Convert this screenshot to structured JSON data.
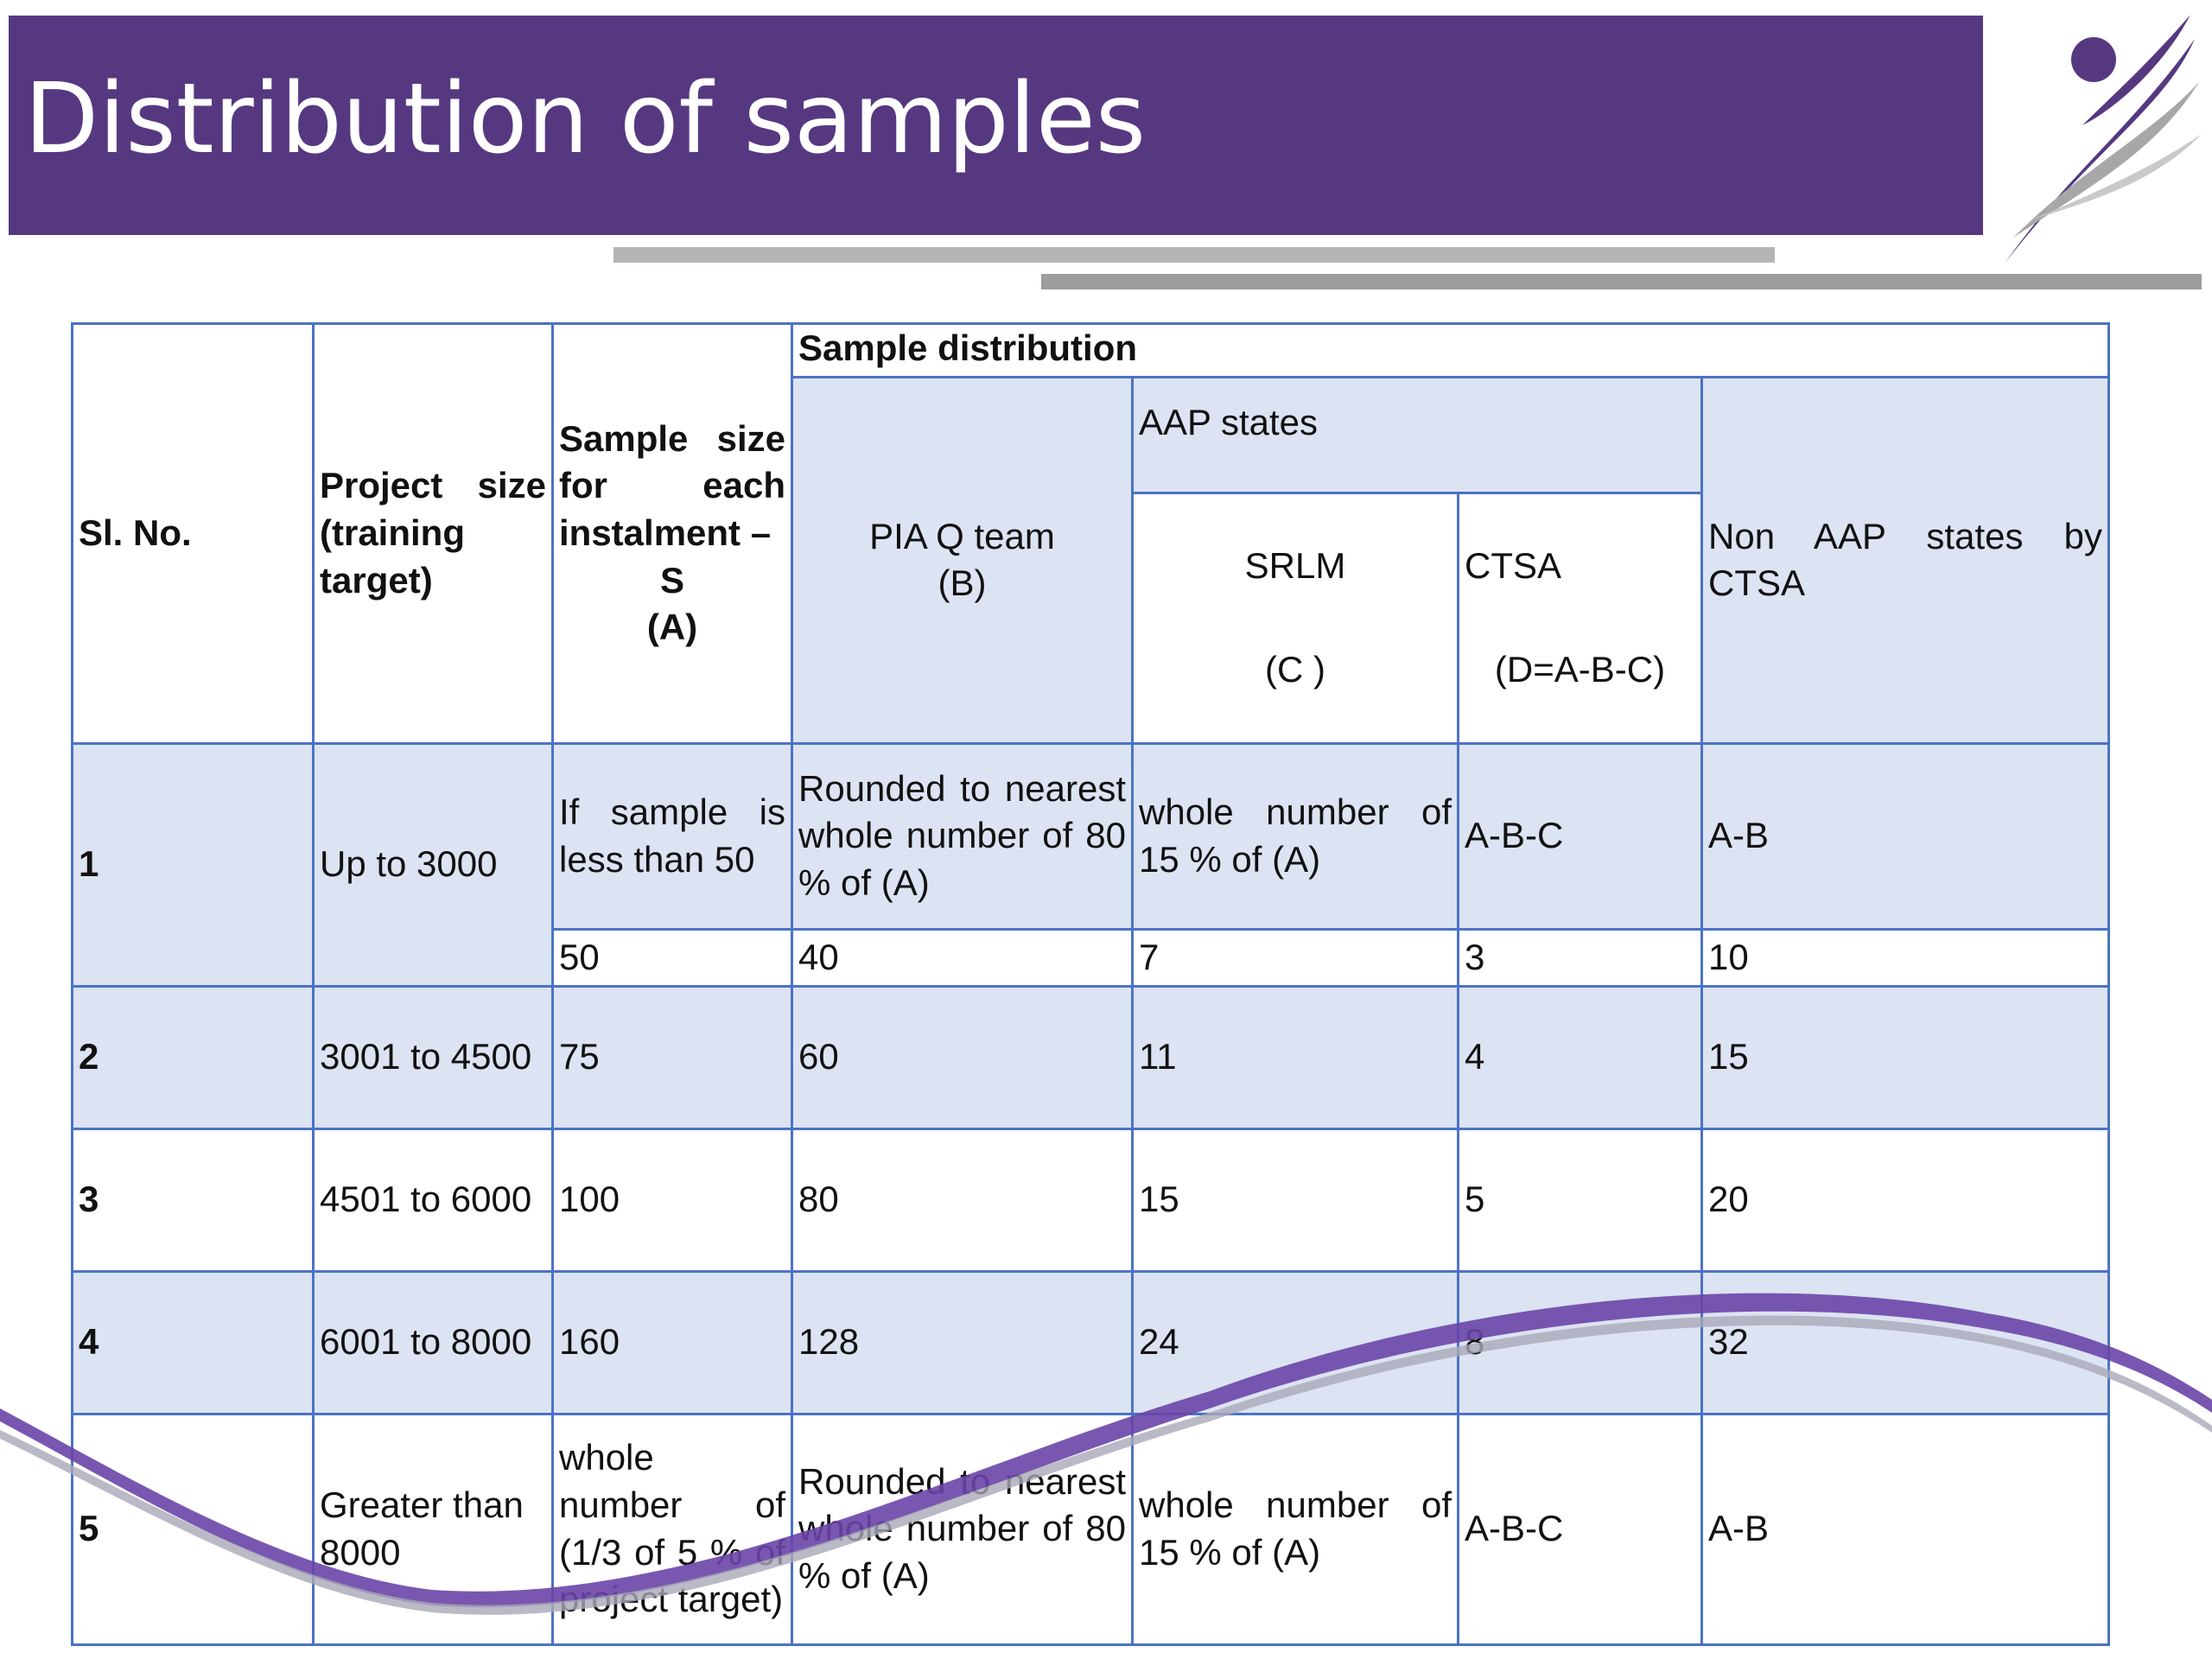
{
  "slide": {
    "title": "Distribution of samples"
  },
  "colors": {
    "banner": "#563881",
    "table_border": "#4b73c4",
    "row_shade": "#dce3f2",
    "accent_bar_light": "#b5b5b5",
    "accent_bar_dark": "#9d9d9d"
  },
  "icons": {
    "logo": "person-swoosh-logo",
    "decoration": "purple-wave-swoosh"
  },
  "table": {
    "headers": {
      "sl_no": "Sl. No.",
      "project_size_1": "Project size",
      "project_size_2": "(training",
      "project_size_3": "target)",
      "sample_size_1": "Sample size",
      "sample_size_2": "for each",
      "sample_size_3": "instalment –",
      "sample_size_4": "S",
      "sample_size_5": "(A)",
      "sample_distribution": "Sample distribution",
      "pia_1": "PIA Q team",
      "pia_2": "(B)",
      "aap_states": "AAP states",
      "srlm_1": "SRLM",
      "srlm_2": "(C )",
      "ctsa_1": "CTSA",
      "ctsa_2": "(D=A-B-C)",
      "non_aap": "Non AAP states by CTSA"
    },
    "rows": [
      {
        "sl": "1",
        "project": "Up to 3000",
        "sample": "If sample is less than 50",
        "pia": "Rounded to nearest whole number of 80 % of (A)",
        "srlm": "whole number of 15 % of (A)",
        "ctsa": "A-B-C",
        "non_aap": "A-B"
      },
      {
        "sample": "50",
        "pia": "40",
        "srlm": "7",
        "ctsa": "3",
        "non_aap": "10"
      },
      {
        "sl": "2",
        "project": "3001 to 4500",
        "sample": "75",
        "pia": "60",
        "srlm": "11",
        "ctsa": "4",
        "non_aap": "15"
      },
      {
        "sl": "3",
        "project": "4501 to 6000",
        "sample": "100",
        "pia": "80",
        "srlm": "15",
        "ctsa": "5",
        "non_aap": "20"
      },
      {
        "sl": "4",
        "project": "6001 to 8000",
        "sample": "160",
        "pia": "128",
        "srlm": "24",
        "ctsa": "8",
        "non_aap": "32"
      },
      {
        "sl": "5",
        "project": "Greater than 8000",
        "sample": "whole number of (1/3 of 5 % of project target)",
        "pia": "Rounded to nearest whole number of 80 % of (A)",
        "srlm": "whole number of 15 % of (A)",
        "ctsa": "A-B-C",
        "non_aap": "A-B"
      }
    ]
  }
}
